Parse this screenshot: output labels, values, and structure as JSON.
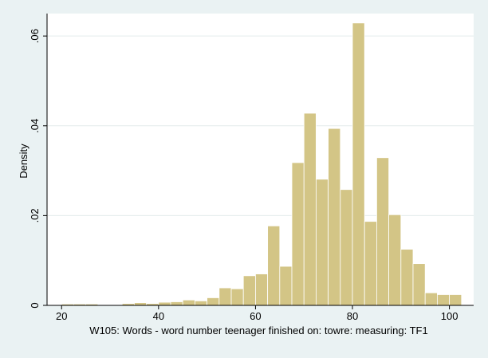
{
  "colors": {
    "background": "#eaf2f3",
    "plot_background": "#ffffff",
    "bar_fill": "#d3c586",
    "bar_stroke": "#ffffff",
    "grid": "#e3ebec",
    "axis": "#000000"
  },
  "chart_data": {
    "type": "bar",
    "title": "",
    "xlabel": "W105: Words - word number teenager finished on: towre: measuring: TF1",
    "ylabel": "Density",
    "xlim": [
      17,
      105
    ],
    "ylim": [
      0,
      0.065
    ],
    "xticks": [
      20,
      40,
      60,
      80,
      100
    ],
    "xtick_labels": [
      "20",
      "40",
      "60",
      "80",
      "100"
    ],
    "yticks": [
      0,
      0.02,
      0.04,
      0.06
    ],
    "ytick_labels": [
      "0",
      ".02",
      ".04",
      ".06"
    ],
    "grid": true,
    "legend": "none",
    "bin_width": 2.5,
    "bins": [
      {
        "x0": 20.0,
        "value": 0.0003
      },
      {
        "x0": 22.5,
        "value": 0.0003
      },
      {
        "x0": 25.0,
        "value": 0.0003
      },
      {
        "x0": 27.5,
        "value": 0.0001
      },
      {
        "x0": 30.0,
        "value": 0.0001
      },
      {
        "x0": 32.5,
        "value": 0.0004
      },
      {
        "x0": 35.0,
        "value": 0.0006
      },
      {
        "x0": 37.5,
        "value": 0.0004
      },
      {
        "x0": 40.0,
        "value": 0.0007
      },
      {
        "x0": 42.5,
        "value": 0.0008
      },
      {
        "x0": 45.0,
        "value": 0.0012
      },
      {
        "x0": 47.5,
        "value": 0.001
      },
      {
        "x0": 50.0,
        "value": 0.0017
      },
      {
        "x0": 52.5,
        "value": 0.0039
      },
      {
        "x0": 55.0,
        "value": 0.0037
      },
      {
        "x0": 57.5,
        "value": 0.0066
      },
      {
        "x0": 60.0,
        "value": 0.007
      },
      {
        "x0": 62.5,
        "value": 0.0177
      },
      {
        "x0": 65.0,
        "value": 0.0087
      },
      {
        "x0": 67.5,
        "value": 0.0318
      },
      {
        "x0": 70.0,
        "value": 0.0428
      },
      {
        "x0": 72.5,
        "value": 0.0281
      },
      {
        "x0": 75.0,
        "value": 0.0394
      },
      {
        "x0": 77.5,
        "value": 0.0258
      },
      {
        "x0": 80.0,
        "value": 0.0629
      },
      {
        "x0": 82.5,
        "value": 0.0187
      },
      {
        "x0": 85.0,
        "value": 0.0329
      },
      {
        "x0": 87.5,
        "value": 0.0202
      },
      {
        "x0": 90.0,
        "value": 0.0125
      },
      {
        "x0": 92.5,
        "value": 0.0093
      },
      {
        "x0": 95.0,
        "value": 0.0028
      },
      {
        "x0": 97.5,
        "value": 0.0024
      },
      {
        "x0": 100.0,
        "value": 0.0024
      }
    ]
  }
}
